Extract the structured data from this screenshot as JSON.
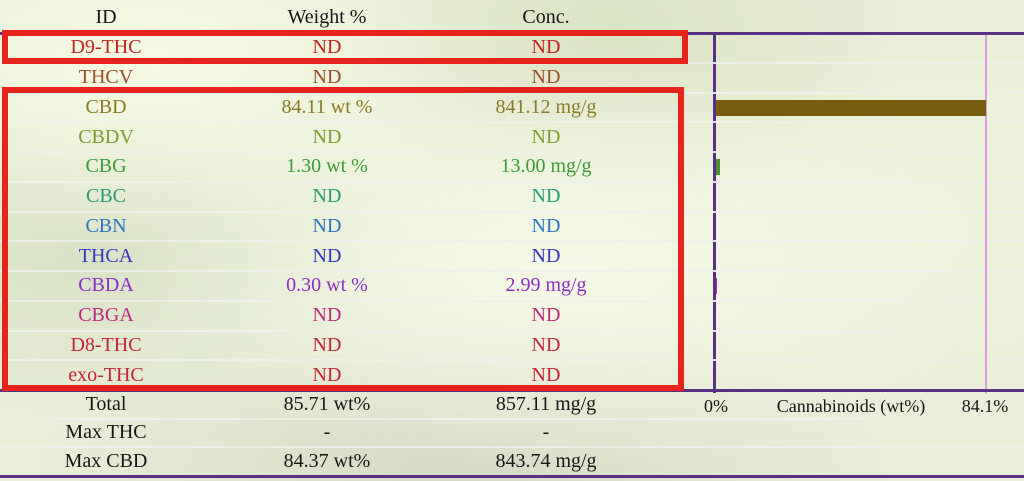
{
  "table": {
    "headers": [
      "ID",
      "Weight %",
      "Conc."
    ],
    "rows": [
      {
        "id": "D9-THC",
        "weight": "ND",
        "conc": "ND",
        "color": "#c3231f"
      },
      {
        "id": "THCV",
        "weight": "ND",
        "conc": "ND",
        "color": "#9c4f28"
      },
      {
        "id": "CBD",
        "weight": "84.11 wt %",
        "conc": "841.12 mg/g",
        "color": "#8a7a22"
      },
      {
        "id": "CBDV",
        "weight": "ND",
        "conc": "ND",
        "color": "#7f9c2e"
      },
      {
        "id": "CBG",
        "weight": "1.30 wt %",
        "conc": "13.00 mg/g",
        "color": "#3b9b36"
      },
      {
        "id": "CBC",
        "weight": "ND",
        "conc": "ND",
        "color": "#2a9b74"
      },
      {
        "id": "CBN",
        "weight": "ND",
        "conc": "ND",
        "color": "#2d75c0"
      },
      {
        "id": "THCA",
        "weight": "ND",
        "conc": "ND",
        "color": "#3634c4"
      },
      {
        "id": "CBDA",
        "weight": "0.30 wt %",
        "conc": "2.99 mg/g",
        "color": "#8c2dc6"
      },
      {
        "id": "CBGA",
        "weight": "ND",
        "conc": "ND",
        "color": "#c02880"
      },
      {
        "id": "D8-THC",
        "weight": "ND",
        "conc": "ND",
        "color": "#c42438"
      },
      {
        "id": "exo-THC",
        "weight": "ND",
        "conc": "ND",
        "color": "#c42438"
      }
    ],
    "summary": [
      {
        "id": "Total",
        "weight": "85.71 wt%",
        "conc": "857.11 mg/g"
      },
      {
        "id": "Max THC",
        "weight": "-",
        "conc": "-"
      },
      {
        "id": "Max CBD",
        "weight": "84.37 wt%",
        "conc": "843.74 mg/g"
      }
    ]
  },
  "chart_data": {
    "type": "bar",
    "orientation": "horizontal",
    "xlabel": "Cannabinoids (wt%)",
    "x_tick_labels": [
      "0%",
      "84.1%"
    ],
    "xlim": [
      0,
      84.1
    ],
    "grid": true,
    "categories": [
      "D9-THC",
      "THCV",
      "CBD",
      "CBDV",
      "CBG",
      "CBC",
      "CBN",
      "THCA",
      "CBDA",
      "CBGA",
      "D8-THC",
      "exo-THC"
    ],
    "values": [
      0,
      0,
      84.11,
      0,
      1.3,
      0,
      0,
      0,
      0.3,
      0,
      0,
      0
    ],
    "bar_colors": [
      "",
      "",
      "#7a5c10",
      "",
      "#4a8f2f",
      "",
      "",
      "",
      "#9c2dc0",
      "",
      "",
      ""
    ],
    "axis_color": "#5a2f86",
    "max_gridline_color": "#d9a0d8"
  },
  "highlights": {
    "color": "#e6241c",
    "boxes": [
      "D9-THC row",
      "CBD through exo-THC rows"
    ]
  }
}
